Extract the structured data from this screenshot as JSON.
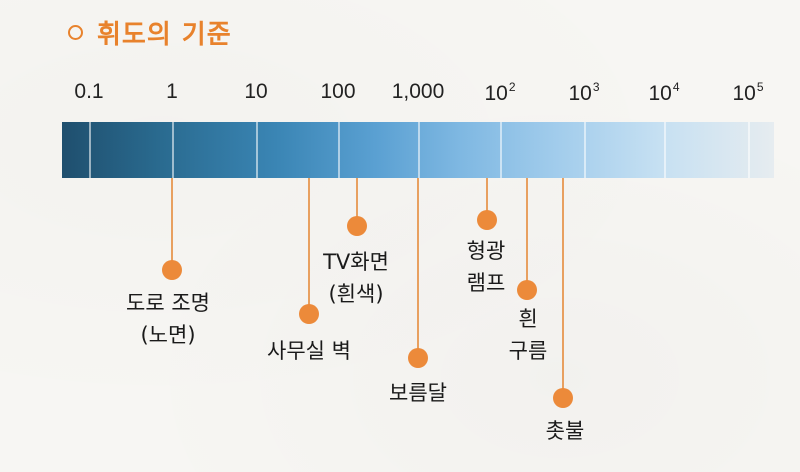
{
  "title": "휘도의 기준",
  "scale": {
    "ticks": [
      {
        "base": "0.1",
        "exp": ""
      },
      {
        "base": "1",
        "exp": ""
      },
      {
        "base": "10",
        "exp": ""
      },
      {
        "base": "100",
        "exp": ""
      },
      {
        "base": "1,000",
        "exp": ""
      },
      {
        "base": "10",
        "exp": "2"
      },
      {
        "base": "10",
        "exp": "3"
      },
      {
        "base": "10",
        "exp": "4"
      },
      {
        "base": "10",
        "exp": "5"
      }
    ]
  },
  "annotations": [
    {
      "line1": "도로 조명",
      "line2": "(노면)"
    },
    {
      "line1": "사무실 벽",
      "line2": ""
    },
    {
      "line1": "TV화면",
      "line2": "(흰색)"
    },
    {
      "line1": "보름달",
      "line2": ""
    },
    {
      "line1": "형광",
      "line2": "램프"
    },
    {
      "line1": "흰",
      "line2": "구름"
    },
    {
      "line1": "촛불",
      "line2": ""
    }
  ],
  "colors": {
    "accent": "#e8822c",
    "dot": "#ec8a3a",
    "bar_dark": "#1f4f6e",
    "bar_light": "#e6ecf0"
  }
}
